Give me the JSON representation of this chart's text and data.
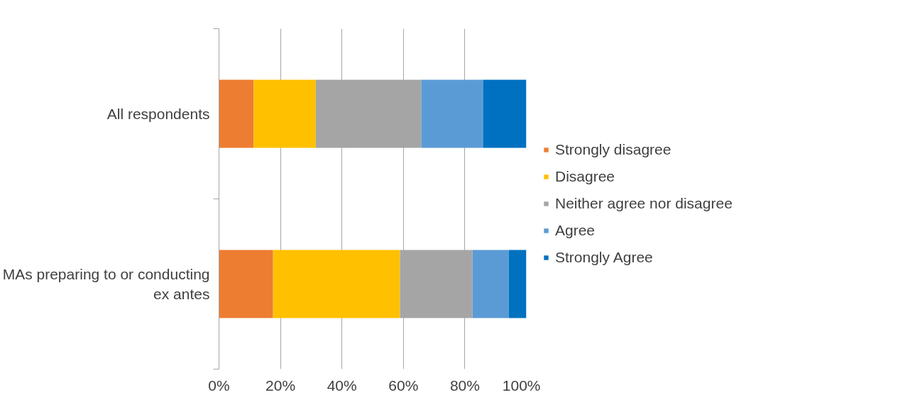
{
  "chart_data": {
    "type": "bar",
    "orientation": "horizontal",
    "stacked": true,
    "categories": [
      "All respondents",
      "MAs preparing to or conducting ex antes"
    ],
    "series": [
      {
        "name": "Strongly disagree",
        "color": "#ed7d31",
        "values": [
          11.3,
          17.6
        ]
      },
      {
        "name": "Disagree",
        "color": "#ffc000",
        "values": [
          20.2,
          41.3
        ]
      },
      {
        "name": "Neither agree nor disagree",
        "color": "#a5a5a5",
        "values": [
          34.3,
          23.6
        ]
      },
      {
        "name": "Agree",
        "color": "#5b9bd5",
        "values": [
          20.1,
          11.8
        ]
      },
      {
        "name": "Strongly Agree",
        "color": "#0070c0",
        "values": [
          14.1,
          5.7
        ]
      }
    ],
    "xlim": [
      0,
      100
    ],
    "xticks": [
      {
        "value": 0,
        "label": "0%"
      },
      {
        "value": 20,
        "label": "20%"
      },
      {
        "value": 40,
        "label": "40%"
      },
      {
        "value": 60,
        "label": "60%"
      },
      {
        "value": 80,
        "label": "80%"
      },
      {
        "value": 100,
        "label": "100%"
      }
    ],
    "grid": "x",
    "legend": "right"
  }
}
